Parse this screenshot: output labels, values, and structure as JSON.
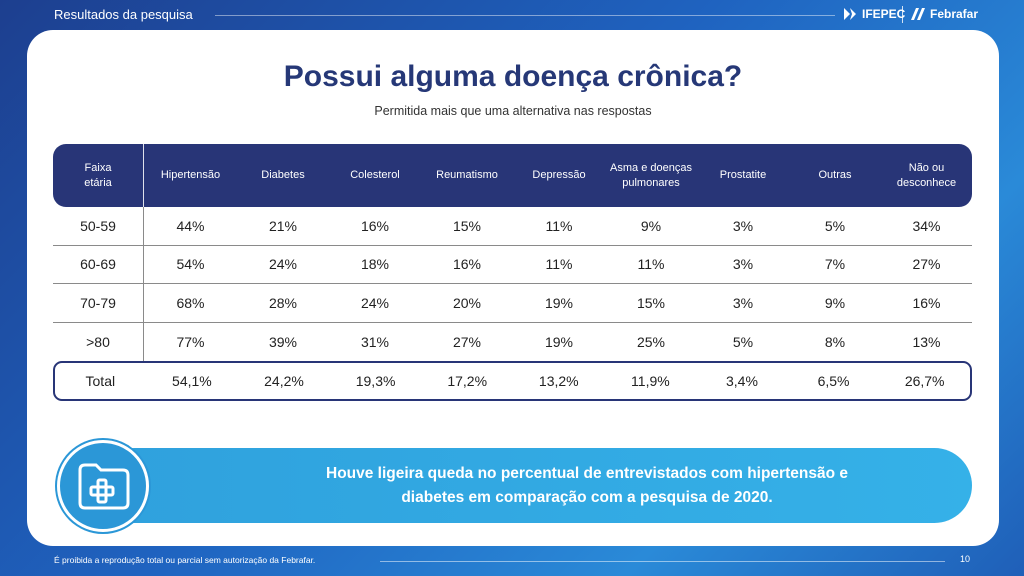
{
  "header": {
    "section_title": "Resultados da pesquisa",
    "logo_ifepec": "IFEPEC",
    "logo_febrafar": "Febrafar"
  },
  "slide": {
    "title": "Possui alguma doença crônica?",
    "subtitle": "Permitida mais que uma alternativa nas respostas"
  },
  "table": {
    "headers": [
      "Faixa\netária",
      "Hipertensão",
      "Diabetes",
      "Colesterol",
      "Reumatismo",
      "Depressão",
      "Asma e doenças\npulmonares",
      "Prostatite",
      "Outras",
      "Não ou\ndesconhece"
    ],
    "rows": [
      [
        "50-59",
        "44%",
        "21%",
        "16%",
        "15%",
        "11%",
        "9%",
        "3%",
        "5%",
        "34%"
      ],
      [
        "60-69",
        "54%",
        "24%",
        "18%",
        "16%",
        "11%",
        "11%",
        "3%",
        "7%",
        "27%"
      ],
      [
        "70-79",
        "68%",
        "28%",
        "24%",
        "20%",
        "19%",
        "15%",
        "3%",
        "9%",
        "16%"
      ],
      [
        ">80",
        "77%",
        "39%",
        "31%",
        "27%",
        "19%",
        "25%",
        "5%",
        "8%",
        "13%"
      ]
    ],
    "total": [
      "Total",
      "54,1%",
      "24,2%",
      "19,3%",
      "17,2%",
      "13,2%",
      "11,9%",
      "3,4%",
      "6,5%",
      "26,7%"
    ]
  },
  "banner": {
    "line1": "Houve ligeira queda no percentual de entrevistados com hipertensão e",
    "line2": "diabetes em comparação com a pesquisa de 2020.",
    "icon": "medical-folder-icon"
  },
  "footer": {
    "notice": "É proibida a reprodução total ou parcial sem autorização da Febrafar.",
    "page_number": "10"
  },
  "colors": {
    "navy": "#283577",
    "title": "#263877",
    "banner": "#2fa1dd"
  }
}
